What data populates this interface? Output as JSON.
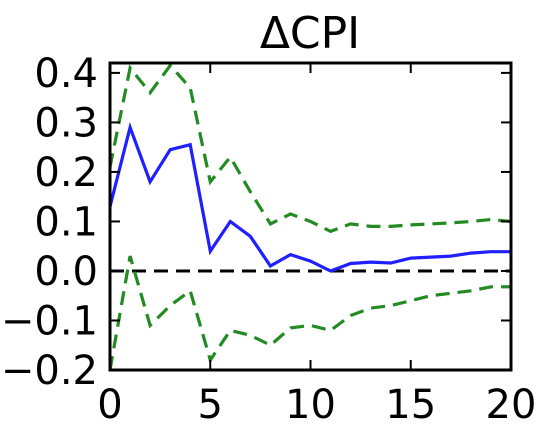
{
  "chart_data": {
    "type": "line",
    "title": "ΔCPI",
    "xlabel": "",
    "ylabel": "",
    "xlim": [
      0,
      20
    ],
    "ylim": [
      -0.2,
      0.42
    ],
    "x_ticks": [
      0,
      5,
      10,
      15,
      20
    ],
    "x_tick_labels": [
      "0",
      "5",
      "10",
      "15",
      "20"
    ],
    "y_ticks": [
      0.4,
      0.3,
      0.2,
      0.1,
      0.0,
      -0.1,
      -0.2
    ],
    "y_tick_labels": [
      "0.4",
      "0.3",
      "0.2",
      "0.1",
      "0.0",
      "−0.1",
      "−0.2"
    ],
    "grid": false,
    "x": [
      0,
      1,
      2,
      3,
      4,
      5,
      6,
      7,
      8,
      9,
      10,
      11,
      12,
      13,
      14,
      15,
      16,
      17,
      18,
      19,
      20
    ],
    "series": [
      {
        "role": "impulse response",
        "color": "#1f1fff",
        "style": "solid",
        "values": [
          0.13,
          0.29,
          0.18,
          0.245,
          0.255,
          0.04,
          0.1,
          0.07,
          0.01,
          0.033,
          0.02,
          0.0,
          0.015,
          0.018,
          0.016,
          0.026,
          0.028,
          0.03,
          0.036,
          0.039,
          0.039
        ]
      },
      {
        "role": "upper band",
        "color": "#228b22",
        "style": "dashed",
        "values": [
          0.21,
          0.41,
          0.36,
          0.415,
          0.37,
          0.18,
          0.23,
          0.16,
          0.095,
          0.115,
          0.1,
          0.08,
          0.095,
          0.09,
          0.09,
          0.093,
          0.095,
          0.097,
          0.1,
          0.104,
          0.1
        ]
      },
      {
        "role": "lower band",
        "color": "#228b22",
        "style": "dashed",
        "values": [
          -0.2,
          0.03,
          -0.11,
          -0.07,
          -0.04,
          -0.18,
          -0.12,
          -0.13,
          -0.15,
          -0.115,
          -0.11,
          -0.12,
          -0.09,
          -0.075,
          -0.07,
          -0.06,
          -0.05,
          -0.045,
          -0.04,
          -0.032,
          -0.032
        ]
      }
    ],
    "reference_lines": [
      {
        "y": 0.0,
        "color": "#000000",
        "style": "dashed"
      }
    ]
  }
}
